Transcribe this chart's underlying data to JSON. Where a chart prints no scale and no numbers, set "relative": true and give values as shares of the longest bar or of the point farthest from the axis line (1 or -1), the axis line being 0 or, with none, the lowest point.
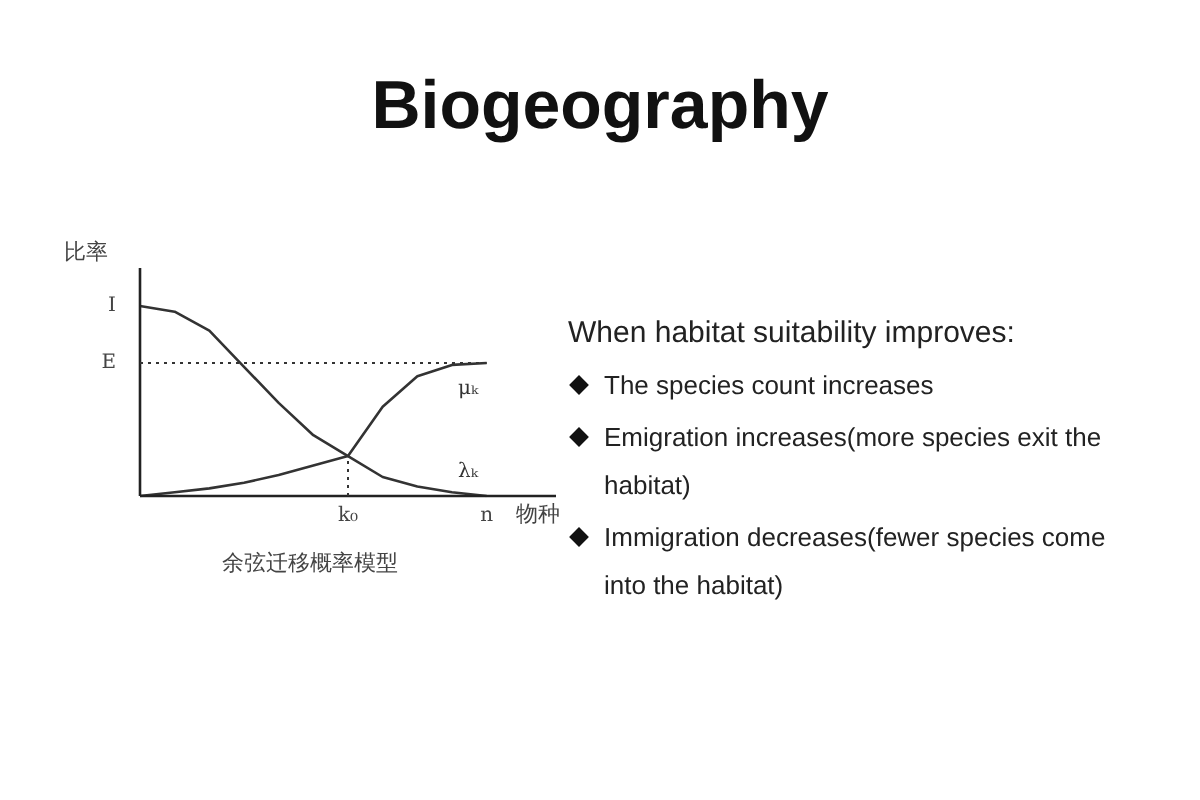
{
  "chart_data": {
    "type": "line",
    "title": "Biogeography",
    "xlabel": "物种",
    "ylabel": "比率",
    "relative": true,
    "categories": [
      null,
      null,
      null,
      null,
      null,
      null,
      "k₀",
      null,
      null,
      null,
      "n",
      null,
      null
    ],
    "series": [
      {
        "name": "λₖ",
        "color": "#333333",
        "values": [
          1.0,
          0.97,
          0.87,
          0.68,
          0.49,
          0.32,
          0.21,
          0.1,
          0.05,
          0.02,
          0,
          null,
          null
        ]
      },
      {
        "name": "μₖ",
        "color": "#333333",
        "values": [
          0,
          0.02,
          0.04,
          0.07,
          0.11,
          0.16,
          0.21,
          0.47,
          0.63,
          0.69,
          0.7,
          null,
          null
        ]
      }
    ],
    "ref_lines": [
      {
        "axis": "y",
        "value": 0.7,
        "label": "E",
        "line_style": "dotted",
        "color": "#333333"
      },
      {
        "axis": "x",
        "value": "k₀",
        "line_style": "dotted",
        "color": "#333333"
      }
    ],
    "legend": false,
    "marker": "none",
    "line_style": "solid",
    "annotations": [
      "I",
      "余弦迁移概率模型",
      "When habitat suitability improves:",
      "The species count increases",
      "Emigration increases(more species exit the habitat)",
      "Immigration decreases(fewer species come into the habitat)"
    ]
  }
}
